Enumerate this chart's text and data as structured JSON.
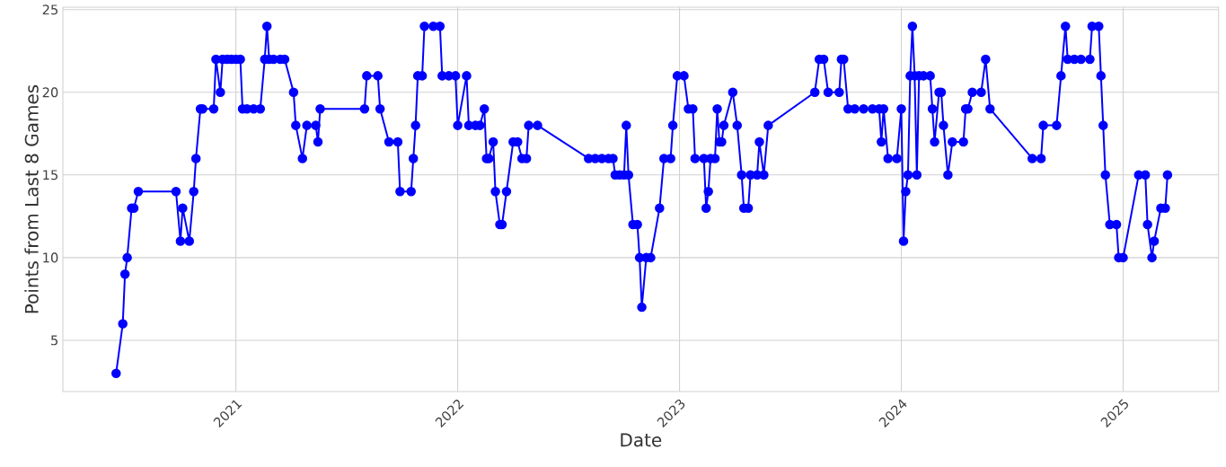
{
  "chart_data": {
    "type": "line",
    "xlabel": "Date",
    "ylabel": "Points from Last 8 Games",
    "x": [
      2020.46,
      2020.49,
      2020.5,
      2020.51,
      2020.53,
      2020.54,
      2020.56,
      2020.73,
      2020.75,
      2020.76,
      2020.79,
      2020.81,
      2020.82,
      2020.84,
      2020.85,
      2020.9,
      2020.91,
      2020.93,
      2020.94,
      2020.96,
      2020.98,
      2021.0,
      2021.02,
      2021.03,
      2021.05,
      2021.08,
      2021.11,
      2021.13,
      2021.14,
      2021.15,
      2021.17,
      2021.2,
      2021.22,
      2021.26,
      2021.27,
      2021.3,
      2021.32,
      2021.36,
      2021.37,
      2021.38,
      2021.58,
      2021.59,
      2021.64,
      2021.65,
      2021.69,
      2021.73,
      2021.74,
      2021.79,
      2021.8,
      2021.81,
      2021.82,
      2021.84,
      2021.85,
      2021.89,
      2021.92,
      2021.93,
      2021.96,
      2021.99,
      2022.0,
      2022.04,
      2022.05,
      2022.08,
      2022.1,
      2022.12,
      2022.13,
      2022.14,
      2022.16,
      2022.17,
      2022.19,
      2022.2,
      2022.22,
      2022.25,
      2022.27,
      2022.29,
      2022.31,
      2022.32,
      2022.36,
      2022.59,
      2022.62,
      2022.65,
      2022.68,
      2022.7,
      2022.71,
      2022.73,
      2022.75,
      2022.76,
      2022.77,
      2022.79,
      2022.81,
      2022.82,
      2022.83,
      2022.85,
      2022.87,
      2022.91,
      2022.93,
      2022.96,
      2022.97,
      2022.99,
      2023.02,
      2023.04,
      2023.06,
      2023.07,
      2023.11,
      2023.12,
      2023.13,
      2023.14,
      2023.16,
      2023.17,
      2023.18,
      2023.19,
      2023.2,
      2023.24,
      2023.26,
      2023.28,
      2023.29,
      2023.31,
      2023.32,
      2023.35,
      2023.36,
      2023.38,
      2023.4,
      2023.61,
      2023.63,
      2023.65,
      2023.67,
      2023.72,
      2023.73,
      2023.74,
      2023.76,
      2023.79,
      2023.83,
      2023.87,
      2023.9,
      2023.91,
      2023.92,
      2023.94,
      2023.98,
      2024.0,
      2024.01,
      2024.02,
      2024.03,
      2024.04,
      2024.05,
      2024.06,
      2024.07,
      2024.08,
      2024.1,
      2024.13,
      2024.14,
      2024.15,
      2024.17,
      2024.18,
      2024.19,
      2024.21,
      2024.23,
      2024.28,
      2024.29,
      2024.3,
      2024.32,
      2024.36,
      2024.38,
      2024.4,
      2024.59,
      2024.63,
      2024.64,
      2024.7,
      2024.72,
      2024.74,
      2024.75,
      2024.78,
      2024.81,
      2024.85,
      2024.86,
      2024.89,
      2024.9,
      2024.91,
      2024.92,
      2024.94,
      2024.97,
      2024.98,
      2025.0,
      2025.07,
      2025.1,
      2025.11,
      2025.13,
      2025.14,
      2025.17,
      2025.19,
      2025.2
    ],
    "series": [
      {
        "color": "#0000ff",
        "values": [
          3,
          6,
          9,
          10,
          13,
          13,
          14,
          14,
          11,
          13,
          11,
          14,
          16,
          19,
          19,
          19,
          22,
          20,
          22,
          22,
          22,
          22,
          22,
          19,
          19,
          19,
          19,
          22,
          24,
          22,
          22,
          22,
          22,
          20,
          18,
          16,
          18,
          18,
          17,
          19,
          19,
          21,
          21,
          19,
          17,
          17,
          14,
          14,
          16,
          18,
          21,
          21,
          24,
          24,
          24,
          21,
          21,
          21,
          18,
          21,
          18,
          18,
          18,
          19,
          16,
          16,
          17,
          14,
          12,
          12,
          14,
          17,
          17,
          16,
          16,
          18,
          18,
          16,
          16,
          16,
          16,
          16,
          15,
          15,
          15,
          18,
          15,
          12,
          12,
          10,
          7,
          10,
          10,
          13,
          16,
          16,
          18,
          21,
          21,
          19,
          19,
          16,
          16,
          13,
          14,
          16,
          16,
          19,
          17,
          17,
          18,
          20,
          18,
          15,
          13,
          13,
          15,
          15,
          17,
          15,
          18,
          20,
          22,
          22,
          20,
          20,
          22,
          22,
          19,
          19,
          19,
          19,
          19,
          17,
          19,
          16,
          16,
          19,
          11,
          14,
          15,
          21,
          24,
          21,
          15,
          21,
          21,
          21,
          19,
          17,
          20,
          20,
          18,
          15,
          17,
          17,
          19,
          19,
          20,
          20,
          22,
          19,
          16,
          16,
          18,
          18,
          21,
          24,
          22,
          22,
          22,
          22,
          24,
          24,
          21,
          18,
          15,
          12,
          12,
          10,
          10,
          15,
          15,
          12,
          10,
          11,
          13,
          13,
          15
        ]
      }
    ],
    "xlim": [
      2020.22,
      2025.43
    ],
    "ylim": [
      1.9,
      25.15
    ],
    "xticks": [
      2021,
      2022,
      2023,
      2024,
      2025
    ],
    "yticks": [
      5,
      10,
      15,
      20,
      25
    ],
    "grid": true,
    "marker": "circle",
    "line_style": "solid"
  }
}
